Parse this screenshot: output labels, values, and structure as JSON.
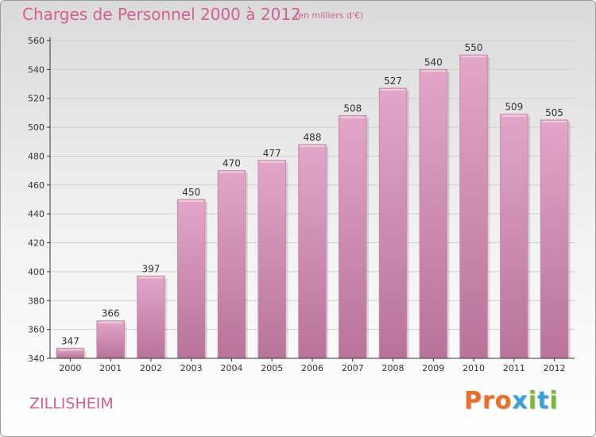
{
  "header": {
    "title": "Charges de Personnel 2000 à 2012",
    "subtitle": "(en milliers d'€)"
  },
  "footer": {
    "commune": "ZILLISHEIM",
    "logo": "Proxiti",
    "logo_colors": [
      "#e8702a",
      "#e8702a",
      "#e8702a",
      "#3aa0d8",
      "#7ab930",
      "#3aa0d8",
      "#7ab930"
    ]
  },
  "colors": {
    "bar_top": "#e2a6c8",
    "bar_bottom": "#b87399",
    "accent": "#d35f94",
    "axis": "#333333",
    "grid": "#cfcfcf"
  },
  "chart_data": {
    "type": "bar",
    "categories": [
      "2000",
      "2001",
      "2002",
      "2003",
      "2004",
      "2005",
      "2006",
      "2007",
      "2008",
      "2009",
      "2010",
      "2011",
      "2012"
    ],
    "values": [
      347,
      366,
      397,
      450,
      470,
      477,
      488,
      508,
      527,
      540,
      550,
      509,
      505
    ],
    "ylim": [
      340,
      560
    ],
    "yticks": [
      340,
      360,
      380,
      400,
      420,
      440,
      460,
      480,
      500,
      520,
      540,
      560
    ],
    "grid": true
  }
}
